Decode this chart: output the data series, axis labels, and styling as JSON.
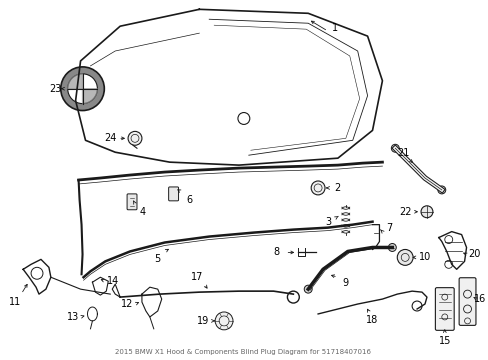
{
  "title": "2015 BMW X1 Hood & Components Blind Plug Diagram for 51718407016",
  "bg_color": "#ffffff",
  "text_color": "#000000",
  "line_color": "#1a1a1a",
  "fig_width": 4.89,
  "fig_height": 3.6,
  "dpi": 100,
  "label_fontsize": 7.0,
  "caption_fontsize": 5.0
}
